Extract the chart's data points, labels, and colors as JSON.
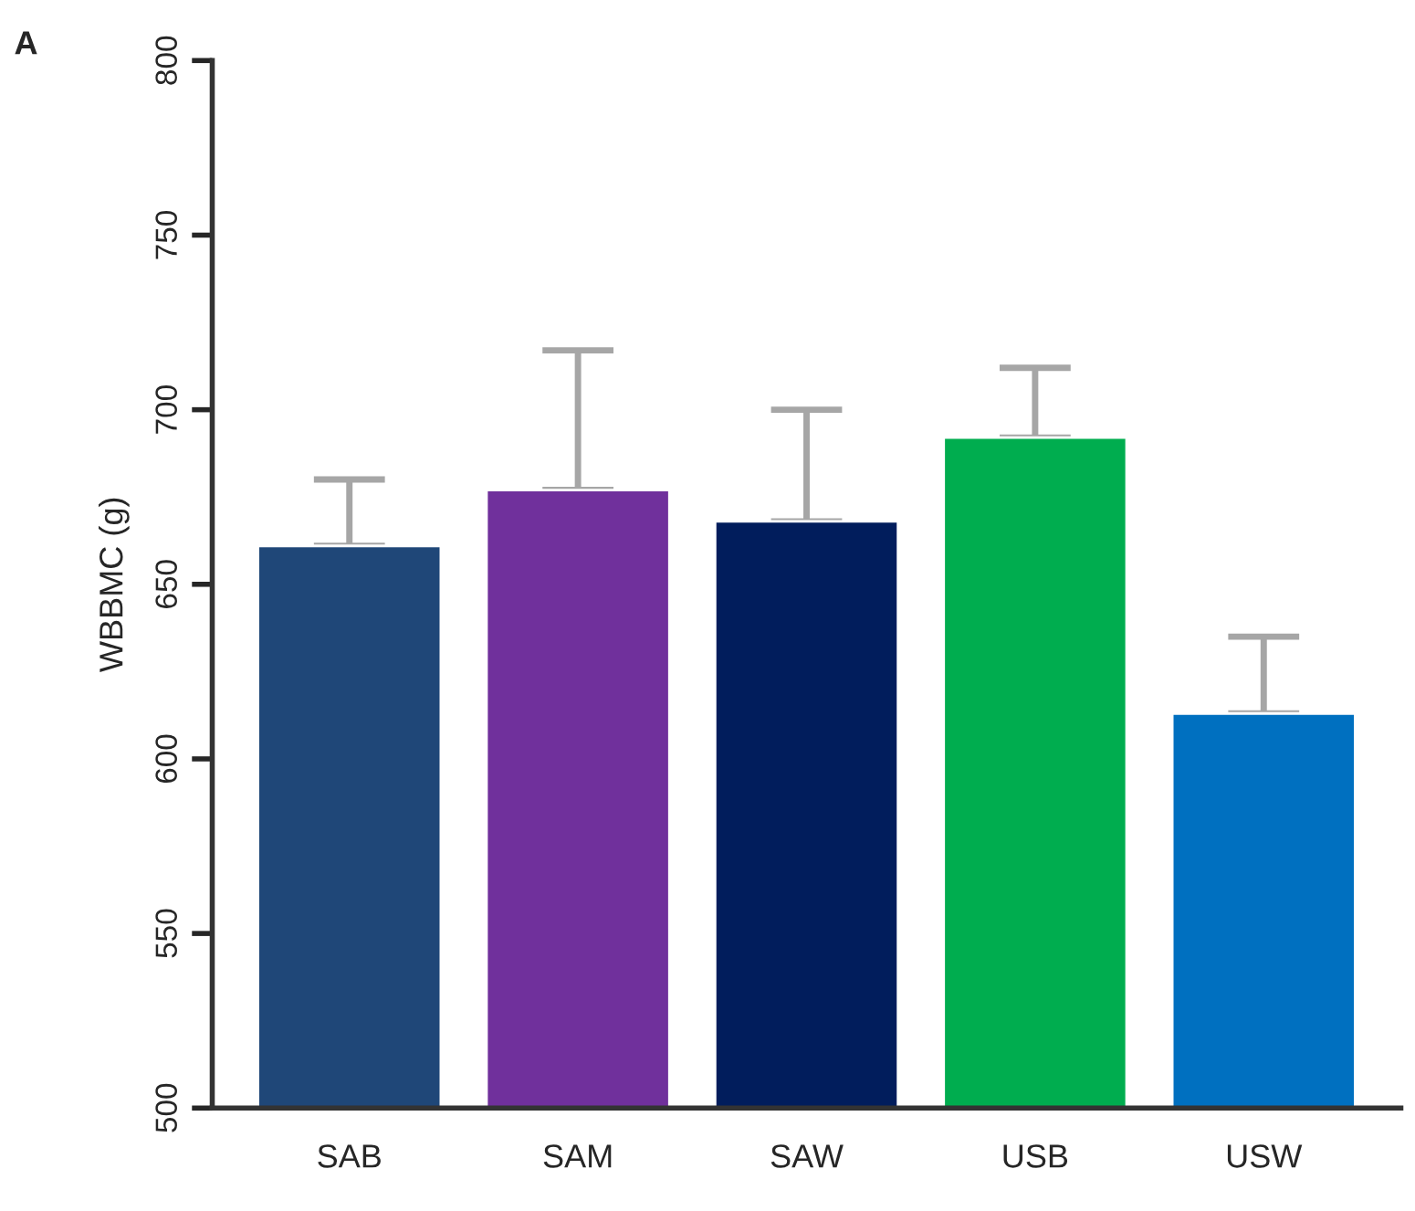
{
  "chart_data": {
    "type": "bar",
    "title": "A",
    "ylabel": "WBBMC (g)",
    "categories": [
      "SAB",
      "SAM",
      "SAW",
      "USB",
      "USW"
    ],
    "values": [
      661,
      677,
      668,
      692,
      613
    ],
    "colors": [
      "#1f4778",
      "#70309c",
      "#011d5c",
      "#00ad4f",
      "#0070c0"
    ],
    "errors": [
      [
        661,
        680
      ],
      [
        677,
        717
      ],
      [
        668,
        700
      ],
      [
        692,
        712
      ],
      [
        613,
        635
      ]
    ],
    "ylim": [
      500,
      800
    ],
    "yticks": [
      500,
      550,
      600,
      650,
      700,
      750,
      800
    ],
    "grid": false
  }
}
